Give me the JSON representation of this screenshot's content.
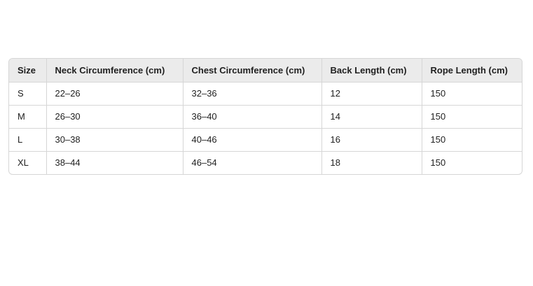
{
  "table": {
    "headers": [
      "Size",
      "Neck Circumference (cm)",
      "Chest Circumference (cm)",
      "Back Length (cm)",
      "Rope Length (cm)"
    ],
    "rows": [
      [
        "S",
        "22–26",
        "32–36",
        "12",
        "150"
      ],
      [
        "M",
        "26–30",
        "36–40",
        "14",
        "150"
      ],
      [
        "L",
        "30–38",
        "40–46",
        "16",
        "150"
      ],
      [
        "XL",
        "38–44",
        "46–54",
        "18",
        "150"
      ]
    ]
  }
}
